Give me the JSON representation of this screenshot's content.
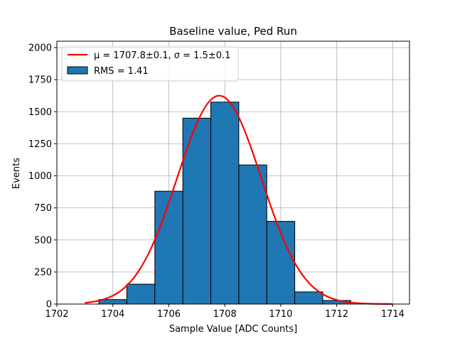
{
  "chart_data": {
    "type": "bar",
    "title": "Baseline value, Ped Run",
    "xlabel": "Sample Value [ADC Counts]",
    "ylabel": "Events",
    "xlim": [
      1702,
      1714.6
    ],
    "ylim": [
      0,
      2050
    ],
    "x_ticks": [
      1702,
      1704,
      1706,
      1708,
      1710,
      1712,
      1714
    ],
    "y_ticks": [
      0,
      250,
      500,
      750,
      1000,
      1250,
      1500,
      1750,
      2000
    ],
    "grid": true,
    "legend_position": "top-left",
    "bin_width": 1,
    "bins": [
      {
        "left": 1703.5,
        "value": 35
      },
      {
        "left": 1704.5,
        "value": 155
      },
      {
        "left": 1705.5,
        "value": 880
      },
      {
        "left": 1706.5,
        "value": 1450
      },
      {
        "left": 1707.5,
        "value": 1575
      },
      {
        "left": 1708.5,
        "value": 1085
      },
      {
        "left": 1709.5,
        "value": 645
      },
      {
        "left": 1710.5,
        "value": 95
      },
      {
        "left": 1711.5,
        "value": 28
      }
    ],
    "fit": {
      "mu": 1707.8,
      "sigma": 1.5,
      "amplitude": 1625,
      "x_range": [
        1703,
        1714
      ]
    },
    "legend": {
      "fit_label": "μ = 1707.8±0.1, σ = 1.5±0.1",
      "hist_label": "RMS = 1.41"
    },
    "colors": {
      "bar": "#1f77b4",
      "bar_edge": "#000000",
      "fit": "#ff0000",
      "grid": "#b0b0b0"
    }
  }
}
